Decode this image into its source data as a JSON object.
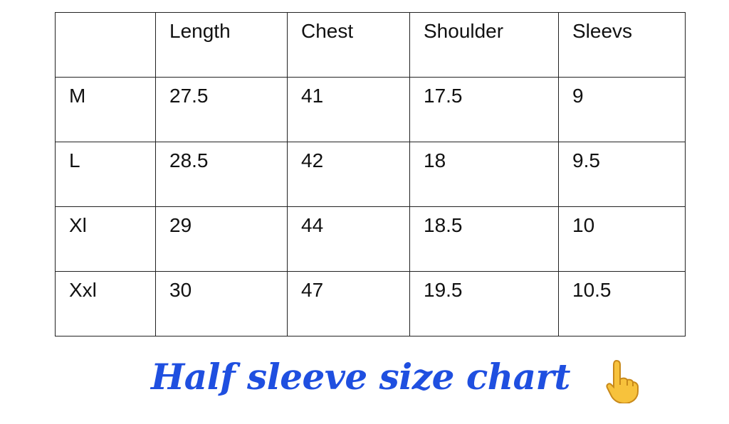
{
  "table": {
    "headers": [
      "",
      "Length",
      "Chest",
      "Shoulder",
      "Sleevs"
    ],
    "rows": [
      [
        "M",
        "27.5",
        "41",
        "17.5",
        "9"
      ],
      [
        "L",
        "28.5",
        "42",
        "18",
        "9.5"
      ],
      [
        "Xl",
        "29",
        "44",
        "18.5",
        "10"
      ],
      [
        "Xxl",
        "30",
        "47",
        "19.5",
        "10.5"
      ]
    ]
  },
  "caption": {
    "text": "Half sleeve size chart",
    "color": "#1f4fe0",
    "emoji_icon": "pointing-up-hand-icon"
  }
}
